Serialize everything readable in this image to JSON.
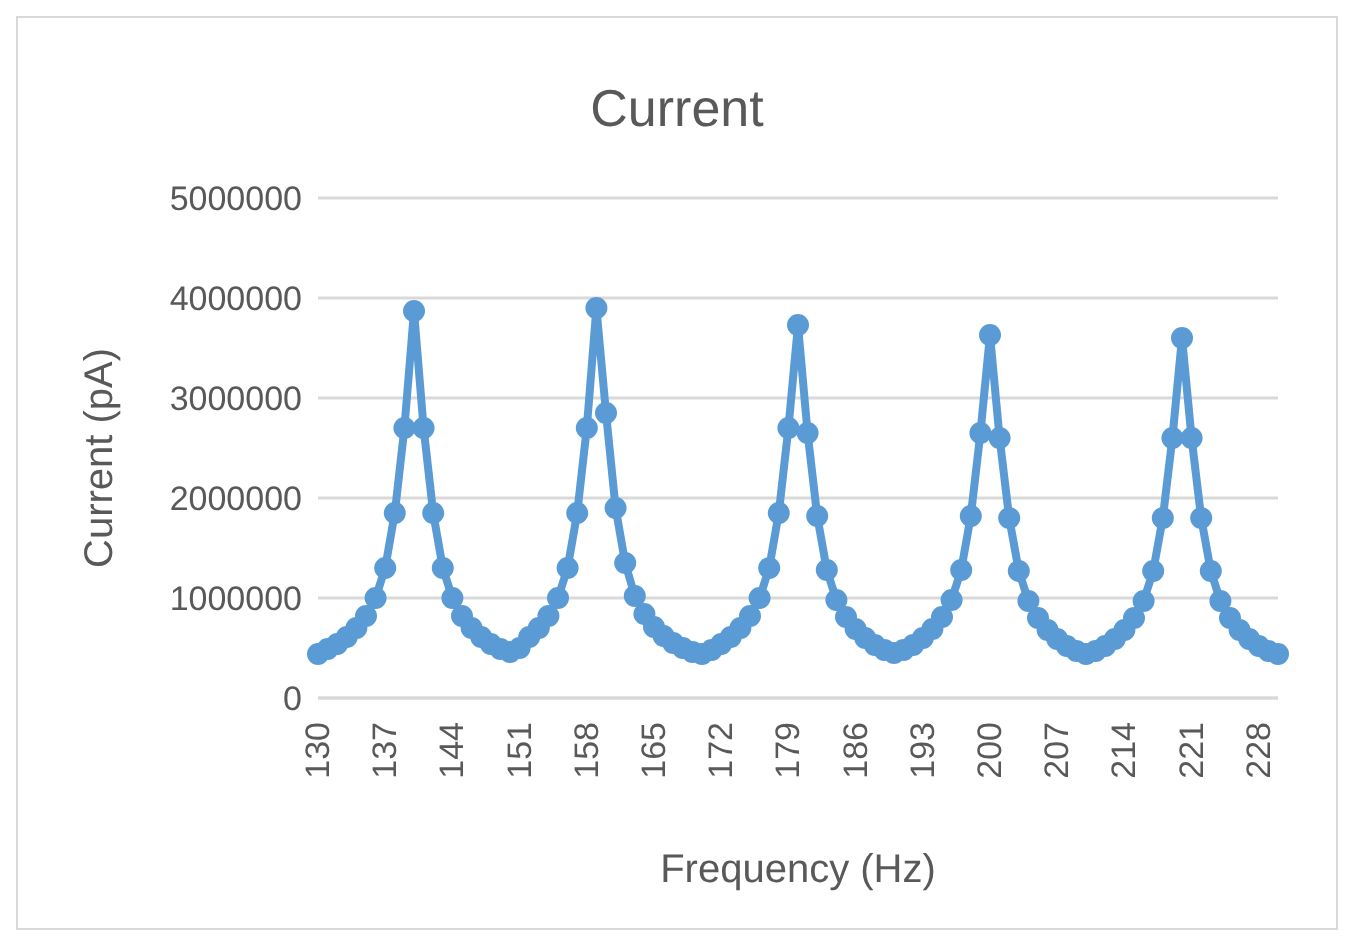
{
  "chart_data": {
    "type": "line",
    "title": "Current",
    "xlabel": "Frequency (Hz)",
    "ylabel": "Current (pA)",
    "categories": [
      "130",
      null,
      null,
      null,
      null,
      null,
      null,
      "137",
      null,
      null,
      null,
      null,
      null,
      null,
      "144",
      null,
      null,
      null,
      null,
      null,
      null,
      "151",
      null,
      null,
      null,
      null,
      null,
      null,
      "158",
      null,
      null,
      null,
      null,
      null,
      null,
      "165",
      null,
      null,
      null,
      null,
      null,
      null,
      "172",
      null,
      null,
      null,
      null,
      null,
      null,
      "179",
      null,
      null,
      null,
      null,
      null,
      null,
      "186",
      null,
      null,
      null,
      null,
      null,
      null,
      "193",
      null,
      null,
      null,
      null,
      null,
      null,
      "200",
      null,
      null,
      null,
      null,
      null,
      null,
      "207",
      null,
      null,
      null,
      null,
      null,
      null,
      "214",
      null,
      null,
      null,
      null,
      null,
      null,
      "221",
      null,
      null,
      null,
      null,
      null,
      null,
      "228",
      null,
      null
    ],
    "series": [
      {
        "color": "#5b9bd5",
        "values": [
          440000,
          490000,
          540000,
          610000,
          700000,
          820000,
          1000000,
          1300000,
          1850000,
          2700000,
          3870000,
          2700000,
          1850000,
          1300000,
          1000000,
          820000,
          700000,
          610000,
          540000,
          490000,
          460000,
          500000,
          610000,
          700000,
          820000,
          1000000,
          1300000,
          1850000,
          2700000,
          3900000,
          2850000,
          1900000,
          1350000,
          1020000,
          840000,
          710000,
          620000,
          550000,
          500000,
          460000,
          440000,
          480000,
          540000,
          610000,
          700000,
          820000,
          1000000,
          1300000,
          1850000,
          2700000,
          3730000,
          2650000,
          1820000,
          1280000,
          980000,
          810000,
          690000,
          600000,
          530000,
          480000,
          450000,
          480000,
          530000,
          600000,
          690000,
          810000,
          980000,
          1280000,
          1820000,
          2650000,
          3630000,
          2600000,
          1800000,
          1270000,
          970000,
          800000,
          680000,
          590000,
          520000,
          470000,
          440000,
          470000,
          520000,
          590000,
          680000,
          800000,
          970000,
          1270000,
          1800000,
          2600000,
          3600000,
          2600000,
          1800000,
          1270000,
          970000,
          800000,
          680000,
          590000,
          520000,
          470000,
          440000
        ]
      }
    ],
    "ylim": [
      0,
      5000000
    ],
    "yticks": [
      0,
      1000000,
      2000000,
      3000000,
      4000000,
      5000000
    ],
    "grid": "y",
    "legend": false,
    "marker": "circle",
    "line_style": "solid"
  }
}
